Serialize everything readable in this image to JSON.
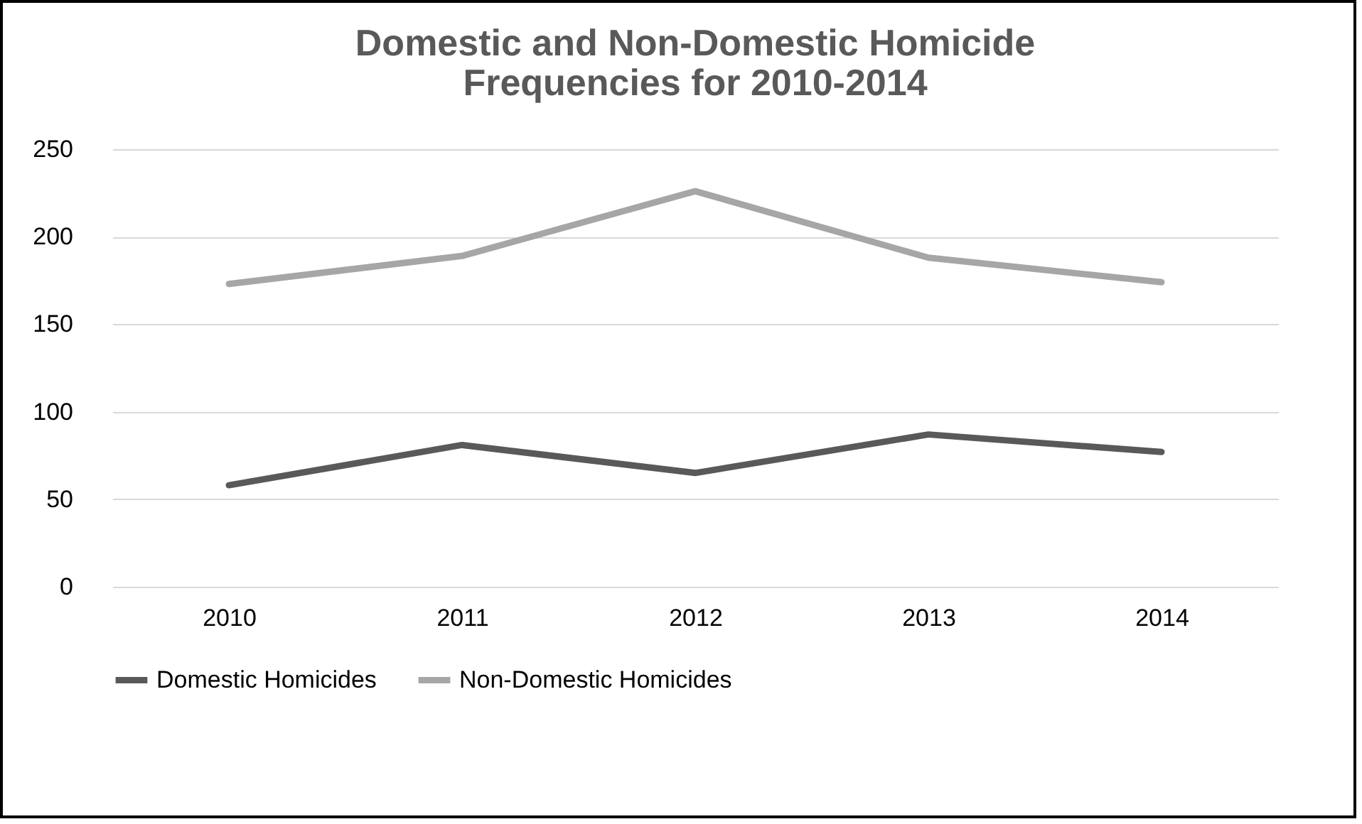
{
  "chart_data": {
    "type": "line",
    "title": [
      "Domestic and Non-Domestic Homicide",
      "Frequencies for 2010-2014"
    ],
    "categories": [
      "2010",
      "2011",
      "2012",
      "2013",
      "2014"
    ],
    "series": [
      {
        "name": "Domestic Homicides",
        "color": "#595959",
        "values": [
          58,
          81,
          65,
          87,
          77
        ]
      },
      {
        "name": "Non-Domestic Homicides",
        "color": "#a6a6a6",
        "values": [
          173,
          189,
          226,
          188,
          174
        ]
      }
    ],
    "ylim": [
      0,
      250
    ],
    "yticks": [
      0,
      50,
      100,
      150,
      200,
      250
    ],
    "grid": "y",
    "legend": "bottom",
    "marker": "none",
    "line_style": "solid"
  }
}
